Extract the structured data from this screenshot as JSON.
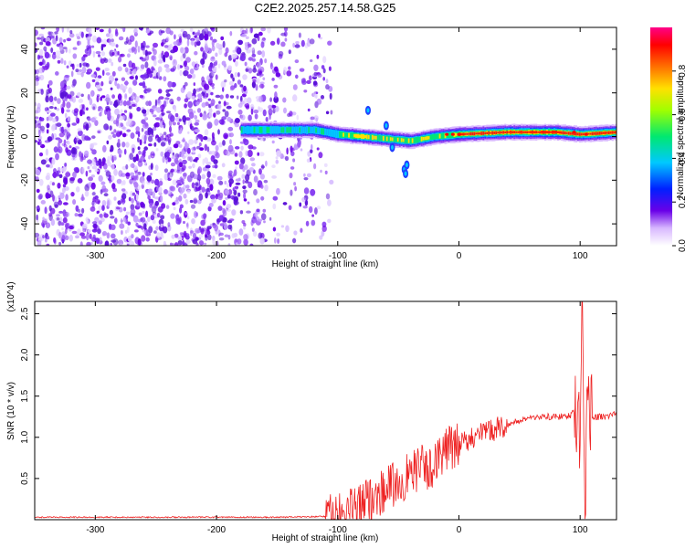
{
  "title": "C2E2.2025.257.14.58.G25",
  "chart_data": [
    {
      "type": "heatmap",
      "xlabel": "Height of straight line (km)",
      "ylabel": "Frequency (Hz)",
      "xlim": [
        -350,
        130
      ],
      "ylim": [
        -50,
        50
      ],
      "xticks": [
        -300,
        -200,
        -100,
        0,
        100
      ],
      "yticks": [
        -40,
        -20,
        0,
        20,
        40
      ],
      "colorbar": {
        "label": "Normalized spectral amplitude",
        "range": [
          0,
          1
        ],
        "ticks": [
          "0.0",
          "0.2",
          "0.4",
          "0.6",
          "0.8"
        ],
        "colormap": [
          "#ffffff",
          "#6a00e8",
          "#0020ff",
          "#00c8ff",
          "#00e870",
          "#a0ff00",
          "#ffe000",
          "#ff7000",
          "#ff0000",
          "#ff0088"
        ]
      },
      "signal_centerline": {
        "x": [
          -180,
          -150,
          -120,
          -100,
          -80,
          -60,
          -40,
          -20,
          0,
          40,
          80,
          100,
          130
        ],
        "y": [
          3,
          3,
          3,
          1,
          0,
          -1,
          -2,
          0,
          1,
          2,
          2,
          1,
          2
        ]
      },
      "noise_region": [
        -350,
        -105
      ]
    },
    {
      "type": "line",
      "xlabel": "Height of straight line (km)",
      "ylabel": "SNR (10 * v/v)",
      "scale_label": "(x10^4)",
      "xlim": [
        -350,
        130
      ],
      "ylim": [
        0,
        2.65
      ],
      "xticks": [
        -300,
        -200,
        -100,
        0,
        100
      ],
      "yticks": [
        "0.5",
        "1.0",
        "1.5",
        "2.0",
        "2.5"
      ],
      "series": [
        {
          "name": "SNR",
          "color": "#ee2222",
          "x": [
            -350,
            -300,
            -200,
            -150,
            -110,
            -100,
            -90,
            -80,
            -70,
            -60,
            -50,
            -40,
            -30,
            -25,
            -20,
            -10,
            0,
            10,
            20,
            30,
            40,
            50,
            60,
            70,
            80,
            90,
            95,
            100,
            102,
            104,
            106,
            110,
            120,
            130
          ],
          "y": [
            0.03,
            0.03,
            0.03,
            0.03,
            0.04,
            0.05,
            0.1,
            0.2,
            0.28,
            0.38,
            0.45,
            0.55,
            0.65,
            0.55,
            0.75,
            0.85,
            0.9,
            1.0,
            1.05,
            1.1,
            1.15,
            1.2,
            1.25,
            1.25,
            1.25,
            1.25,
            1.3,
            1.2,
            2.6,
            0.1,
            1.6,
            1.25,
            1.25,
            1.28
          ]
        }
      ]
    }
  ]
}
